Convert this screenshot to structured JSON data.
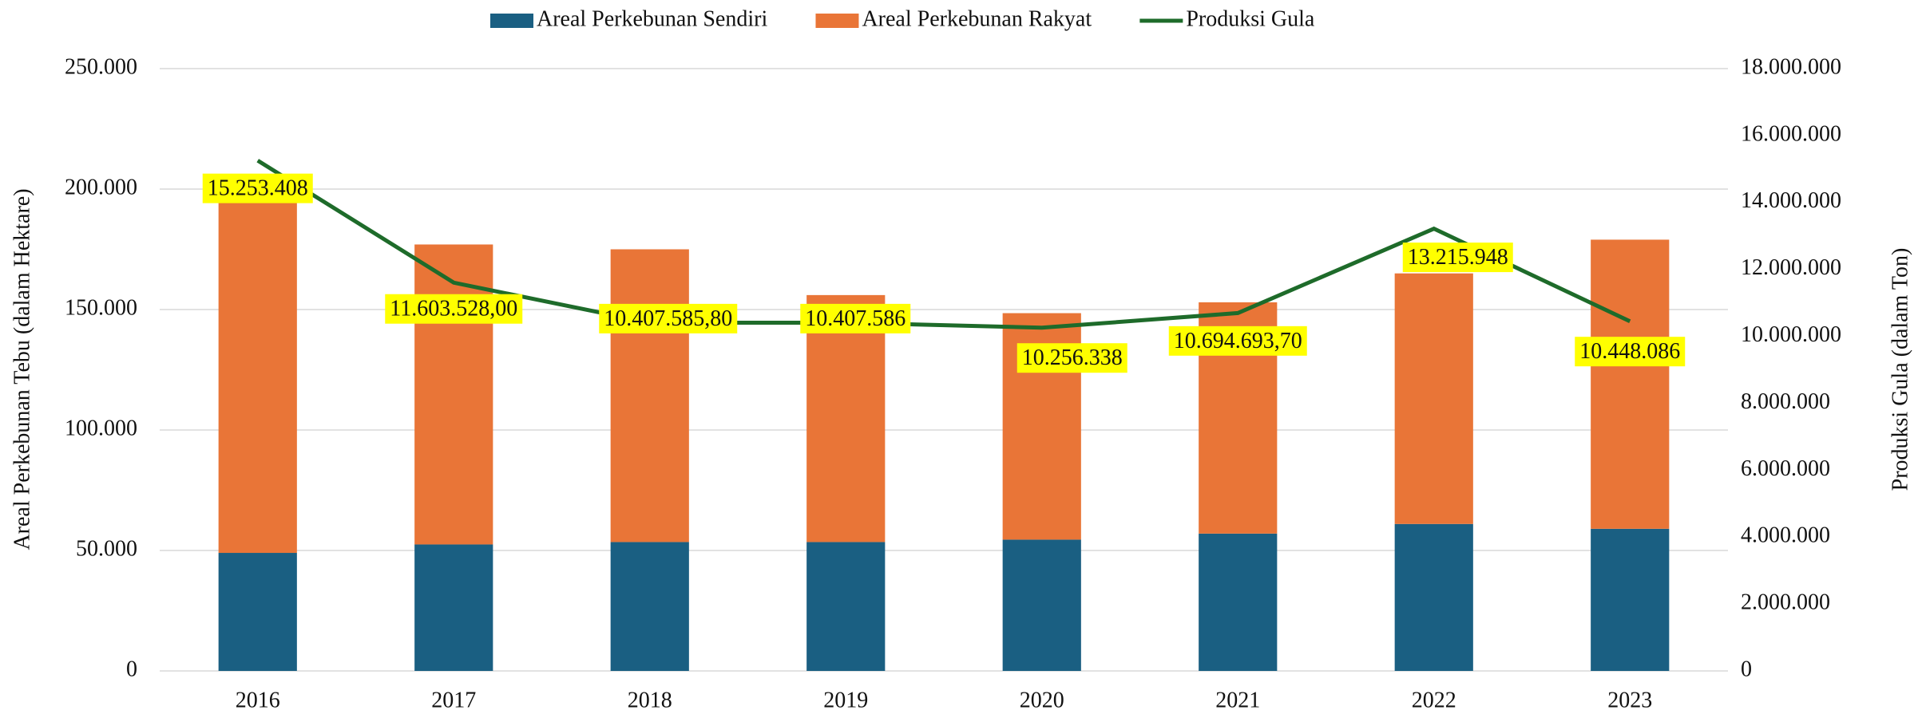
{
  "chart_data": {
    "type": "bar",
    "stacked": true,
    "legend": "top",
    "grid": true,
    "y_label": "Areal Perkebunan Tebu (dalam Hektare)",
    "y2_label": "Produksi Gula (dalam Ton)",
    "categories": [
      "2016",
      "2017",
      "2018",
      "2019",
      "2020",
      "2021",
      "2022",
      "2023"
    ],
    "series": [
      {
        "name": "Areal Perkebunan Sendiri",
        "color": "#1a5f82",
        "values": [
          49000,
          52500,
          53500,
          53500,
          54500,
          57000,
          61000,
          59000
        ]
      },
      {
        "name": "Areal Perkebunan Rakyat",
        "color": "#e97537",
        "values": [
          146000,
          124500,
          121500,
          102500,
          94000,
          96000,
          104000,
          120000
        ]
      },
      {
        "name": "Produksi Gula",
        "type": "line",
        "axis": "y2",
        "color": "#1e6b2a",
        "values": [
          15253408,
          11603528,
          10407585.8,
          10407586,
          10256338,
          10694693.7,
          13215948,
          10448086
        ],
        "value_labels": [
          "15.253.408",
          "11.603.528,00",
          "10.407.585,80",
          "10.407.586",
          "10.256.338",
          "10.694.693,70",
          "13.215.948",
          "10.448.086"
        ]
      }
    ],
    "ylim": [
      0,
      250000
    ],
    "yticks": [
      0,
      {
        "value": 50000,
        "label": "50.000"
      },
      {
        "value": 100000,
        "label": "100.000"
      },
      {
        "value": 150000,
        "label": "150.000"
      },
      {
        "value": 200000,
        "label": "200.000"
      },
      {
        "value": 250000,
        "label": "250.000"
      }
    ],
    "y2lim": [
      0,
      18000000
    ],
    "y2ticks": [
      0,
      {
        "value": 2000000,
        "label": "2.000.000"
      },
      {
        "value": 4000000,
        "label": "4.000.000"
      },
      {
        "value": 6000000,
        "label": "6.000.000"
      },
      {
        "value": 8000000,
        "label": "8.000.000"
      },
      {
        "value": 10000000,
        "label": "10.000.000"
      },
      {
        "value": 12000000,
        "label": "12.000.000"
      },
      {
        "value": 14000000,
        "label": "14.000.000"
      },
      {
        "value": 16000000,
        "label": "16.000.000"
      },
      {
        "value": 18000000,
        "label": "18.000.000"
      }
    ]
  }
}
